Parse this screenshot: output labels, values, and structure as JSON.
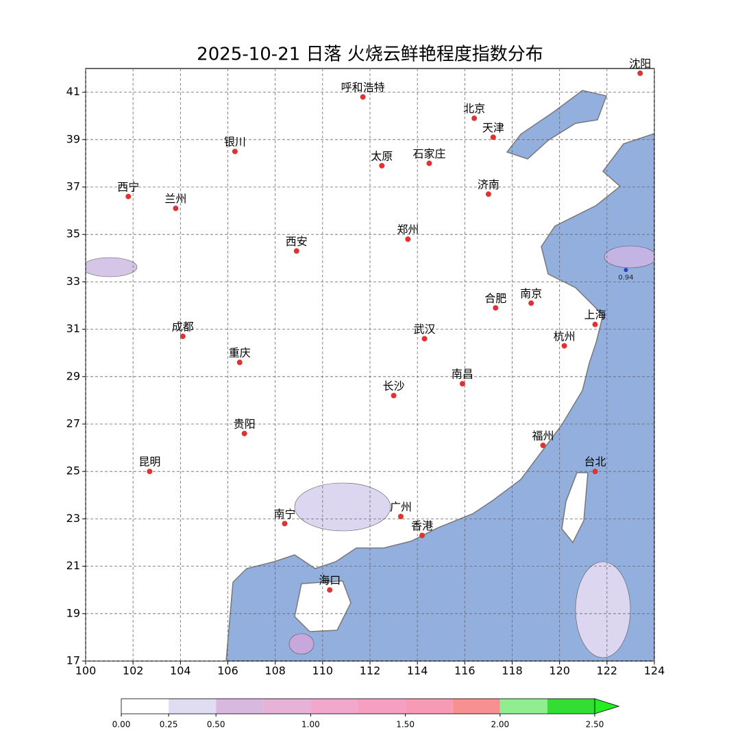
{
  "chart_data": {
    "type": "map",
    "title": "2025-10-21 日落 火烧云鲜艳程度指数分布",
    "xlim": [
      100,
      124
    ],
    "ylim": [
      17,
      42
    ],
    "xticks": [
      100,
      102,
      104,
      106,
      108,
      110,
      112,
      114,
      116,
      118,
      120,
      122,
      124
    ],
    "yticks": [
      17,
      19,
      21,
      23,
      25,
      27,
      29,
      31,
      33,
      35,
      37,
      39,
      41
    ],
    "grid": true,
    "city_color": "#d33",
    "cities": [
      {
        "name": "沈阳",
        "lon": 123.4,
        "lat": 41.8
      },
      {
        "name": "呼和浩特",
        "lon": 111.7,
        "lat": 40.8
      },
      {
        "name": "北京",
        "lon": 116.4,
        "lat": 39.9
      },
      {
        "name": "天津",
        "lon": 117.2,
        "lat": 39.1
      },
      {
        "name": "银川",
        "lon": 106.3,
        "lat": 38.5
      },
      {
        "name": "太原",
        "lon": 112.5,
        "lat": 37.9
      },
      {
        "name": "石家庄",
        "lon": 114.5,
        "lat": 38.0
      },
      {
        "name": "西宁",
        "lon": 101.8,
        "lat": 36.6
      },
      {
        "name": "兰州",
        "lon": 103.8,
        "lat": 36.1
      },
      {
        "name": "济南",
        "lon": 117.0,
        "lat": 36.7
      },
      {
        "name": "郑州",
        "lon": 113.6,
        "lat": 34.8
      },
      {
        "name": "西安",
        "lon": 108.9,
        "lat": 34.3
      },
      {
        "name": "合肥",
        "lon": 117.3,
        "lat": 31.9
      },
      {
        "name": "南京",
        "lon": 118.8,
        "lat": 32.1
      },
      {
        "name": "上海",
        "lon": 121.5,
        "lat": 31.2
      },
      {
        "name": "武汉",
        "lon": 114.3,
        "lat": 30.6
      },
      {
        "name": "成都",
        "lon": 104.1,
        "lat": 30.7
      },
      {
        "name": "重庆",
        "lon": 106.5,
        "lat": 29.6
      },
      {
        "name": "杭州",
        "lon": 120.2,
        "lat": 30.3
      },
      {
        "name": "南昌",
        "lon": 115.9,
        "lat": 28.7
      },
      {
        "name": "长沙",
        "lon": 113.0,
        "lat": 28.2
      },
      {
        "name": "贵阳",
        "lon": 106.7,
        "lat": 26.6
      },
      {
        "name": "福州",
        "lon": 119.3,
        "lat": 26.1
      },
      {
        "name": "台北",
        "lon": 121.5,
        "lat": 25.0
      },
      {
        "name": "昆明",
        "lon": 102.7,
        "lat": 25.0
      },
      {
        "name": "南宁",
        "lon": 108.4,
        "lat": 22.8
      },
      {
        "name": "广州",
        "lon": 113.3,
        "lat": 23.1
      },
      {
        "name": "香港",
        "lon": 114.2,
        "lat": 22.3
      },
      {
        "name": "海口",
        "lon": 110.3,
        "lat": 20.0
      }
    ],
    "annotation": {
      "value": 0.94,
      "lon": 122.8,
      "lat": 33.5
    },
    "colorbar": {
      "boundaries": [
        0,
        0.25,
        0.5,
        0.75,
        1,
        1.25,
        1.5,
        1.75,
        2,
        2.25,
        2.5
      ],
      "colors": [
        "#ffffff",
        "#e0dcf2",
        "#d9b8e0",
        "#e6b2d8",
        "#f2a8cc",
        "#f5a0c0",
        "#f79ab5",
        "#f79090",
        "#90ee90",
        "#33dd33"
      ],
      "extend_color": "#22ee22",
      "ticks": [
        {
          "value": 0,
          "label": "0.00"
        },
        {
          "value": 0.25,
          "label": "0.25"
        },
        {
          "value": 0.5,
          "label": "0.50"
        },
        {
          "value": 1,
          "label": "1.00"
        },
        {
          "value": 1.5,
          "label": "1.50"
        },
        {
          "value": 2,
          "label": "2.00"
        },
        {
          "value": 2.5,
          "label": "2.50"
        }
      ]
    }
  }
}
